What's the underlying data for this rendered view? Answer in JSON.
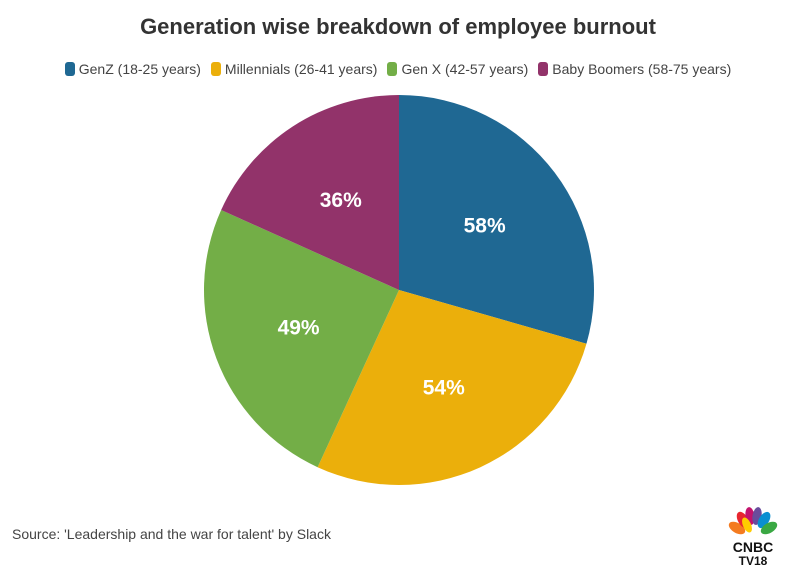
{
  "chart_data": {
    "type": "pie",
    "title": "Generation wise breakdown of employee burnout",
    "legend_position": "top",
    "slices": [
      {
        "label": "GenZ (18-25 years)",
        "value": 58,
        "data_label": "58%",
        "color": "#1f6893"
      },
      {
        "label": "Millennials (26-41 years)",
        "value": 54,
        "data_label": "54%",
        "color": "#ebaf0b"
      },
      {
        "label": "Gen X (42-57 years)",
        "value": 49,
        "data_label": "49%",
        "color": "#73ae47"
      },
      {
        "label": "Baby Boomers (58-75 years)",
        "value": 36,
        "data_label": "36%",
        "color": "#92336a"
      }
    ]
  },
  "source": "Source: 'Leadership and the war for talent' by Slack",
  "logo": {
    "text": "CNBC TV18"
  }
}
